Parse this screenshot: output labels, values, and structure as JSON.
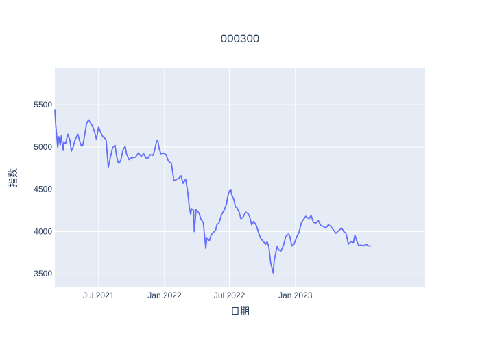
{
  "chart_data": {
    "type": "line",
    "title": "000300",
    "xlabel": "日期",
    "ylabel": "指数",
    "x_range": [
      "2021-03-01",
      "2023-12-29"
    ],
    "ylim": [
      3340,
      5930
    ],
    "grid": true,
    "legend": "none",
    "colors": {
      "line": "#636efa",
      "plot_bg": "#e5ecf6",
      "grid": "#ffffff",
      "text": "#2a3f5f"
    },
    "x_ticks": [
      {
        "label": "Jul 2021",
        "date": "2021-07-01"
      },
      {
        "label": "Jan 2022",
        "date": "2022-01-01"
      },
      {
        "label": "Jul 2022",
        "date": "2022-07-01"
      },
      {
        "label": "Jan 2023",
        "date": "2023-01-01"
      }
    ],
    "y_ticks": [
      3500,
      4000,
      4500,
      5000,
      5500
    ],
    "series": [
      {
        "points": [
          [
            "2021-03-01",
            5440
          ],
          [
            "2021-03-03",
            5290
          ],
          [
            "2021-03-09",
            4990
          ],
          [
            "2021-03-12",
            5120
          ],
          [
            "2021-03-16",
            5020
          ],
          [
            "2021-03-19",
            5130
          ],
          [
            "2021-03-24",
            4960
          ],
          [
            "2021-03-26",
            5060
          ],
          [
            "2021-03-31",
            5040
          ],
          [
            "2021-04-06",
            5150
          ],
          [
            "2021-04-12",
            5080
          ],
          [
            "2021-04-16",
            4950
          ],
          [
            "2021-04-21",
            5000
          ],
          [
            "2021-04-26",
            5080
          ],
          [
            "2021-05-04",
            5150
          ],
          [
            "2021-05-10",
            5060
          ],
          [
            "2021-05-14",
            5010
          ],
          [
            "2021-05-18",
            5020
          ],
          [
            "2021-05-24",
            5160
          ],
          [
            "2021-05-28",
            5270
          ],
          [
            "2021-06-03",
            5320
          ],
          [
            "2021-06-09",
            5280
          ],
          [
            "2021-06-15",
            5240
          ],
          [
            "2021-06-21",
            5160
          ],
          [
            "2021-06-25",
            5090
          ],
          [
            "2021-07-01",
            5240
          ],
          [
            "2021-07-06",
            5180
          ],
          [
            "2021-07-13",
            5120
          ],
          [
            "2021-07-19",
            5100
          ],
          [
            "2021-07-22",
            5080
          ],
          [
            "2021-07-28",
            4760
          ],
          [
            "2021-08-03",
            4880
          ],
          [
            "2021-08-09",
            4990
          ],
          [
            "2021-08-16",
            5020
          ],
          [
            "2021-08-20",
            4900
          ],
          [
            "2021-08-25",
            4810
          ],
          [
            "2021-08-31",
            4830
          ],
          [
            "2021-09-07",
            4960
          ],
          [
            "2021-09-13",
            5010
          ],
          [
            "2021-09-17",
            4920
          ],
          [
            "2021-09-24",
            4850
          ],
          [
            "2021-09-30",
            4870
          ],
          [
            "2021-10-12",
            4880
          ],
          [
            "2021-10-20",
            4930
          ],
          [
            "2021-10-28",
            4890
          ],
          [
            "2021-11-04",
            4920
          ],
          [
            "2021-11-10",
            4870
          ],
          [
            "2021-11-16",
            4870
          ],
          [
            "2021-11-22",
            4910
          ],
          [
            "2021-11-29",
            4900
          ],
          [
            "2021-12-03",
            4940
          ],
          [
            "2021-12-10",
            5070
          ],
          [
            "2021-12-13",
            5080
          ],
          [
            "2021-12-17",
            4980
          ],
          [
            "2021-12-22",
            4920
          ],
          [
            "2021-12-28",
            4930
          ],
          [
            "2022-01-05",
            4910
          ],
          [
            "2022-01-10",
            4850
          ],
          [
            "2022-01-14",
            4820
          ],
          [
            "2022-01-20",
            4810
          ],
          [
            "2022-01-27",
            4600
          ],
          [
            "2022-02-10",
            4630
          ],
          [
            "2022-02-16",
            4660
          ],
          [
            "2022-02-22",
            4570
          ],
          [
            "2022-03-01",
            4620
          ],
          [
            "2022-03-07",
            4460
          ],
          [
            "2022-03-11",
            4290
          ],
          [
            "2022-03-15",
            4200
          ],
          [
            "2022-03-17",
            4270
          ],
          [
            "2022-03-23",
            4250
          ],
          [
            "2022-03-25",
            4000
          ],
          [
            "2022-03-30",
            4260
          ],
          [
            "2022-04-07",
            4220
          ],
          [
            "2022-04-13",
            4140
          ],
          [
            "2022-04-19",
            4110
          ],
          [
            "2022-04-26",
            3800
          ],
          [
            "2022-04-29",
            3920
          ],
          [
            "2022-05-06",
            3890
          ],
          [
            "2022-05-11",
            3960
          ],
          [
            "2022-05-17",
            3990
          ],
          [
            "2022-05-23",
            4010
          ],
          [
            "2022-05-27",
            4080
          ],
          [
            "2022-06-02",
            4100
          ],
          [
            "2022-06-08",
            4190
          ],
          [
            "2022-06-13",
            4230
          ],
          [
            "2022-06-17",
            4260
          ],
          [
            "2022-06-23",
            4330
          ],
          [
            "2022-06-27",
            4430
          ],
          [
            "2022-07-01",
            4480
          ],
          [
            "2022-07-05",
            4490
          ],
          [
            "2022-07-08",
            4430
          ],
          [
            "2022-07-13",
            4380
          ],
          [
            "2022-07-18",
            4290
          ],
          [
            "2022-07-22",
            4280
          ],
          [
            "2022-07-28",
            4230
          ],
          [
            "2022-08-02",
            4150
          ],
          [
            "2022-08-08",
            4170
          ],
          [
            "2022-08-15",
            4230
          ],
          [
            "2022-08-22",
            4210
          ],
          [
            "2022-08-26",
            4180
          ],
          [
            "2022-09-01",
            4080
          ],
          [
            "2022-09-07",
            4120
          ],
          [
            "2022-09-14",
            4070
          ],
          [
            "2022-09-20",
            3990
          ],
          [
            "2022-09-26",
            3920
          ],
          [
            "2022-10-10",
            3850
          ],
          [
            "2022-10-14",
            3880
          ],
          [
            "2022-10-19",
            3820
          ],
          [
            "2022-10-24",
            3630
          ],
          [
            "2022-10-31",
            3510
          ],
          [
            "2022-11-03",
            3660
          ],
          [
            "2022-11-08",
            3760
          ],
          [
            "2022-11-11",
            3820
          ],
          [
            "2022-11-16",
            3780
          ],
          [
            "2022-11-22",
            3770
          ],
          [
            "2022-11-29",
            3840
          ],
          [
            "2022-12-05",
            3940
          ],
          [
            "2022-12-12",
            3970
          ],
          [
            "2022-12-16",
            3950
          ],
          [
            "2022-12-22",
            3830
          ],
          [
            "2022-12-28",
            3850
          ],
          [
            "2023-01-05",
            3940
          ],
          [
            "2023-01-11",
            3990
          ],
          [
            "2023-01-18",
            4110
          ],
          [
            "2023-01-30",
            4180
          ],
          [
            "2023-02-08",
            4150
          ],
          [
            "2023-02-14",
            4190
          ],
          [
            "2023-02-20",
            4110
          ],
          [
            "2023-02-27",
            4100
          ],
          [
            "2023-03-06",
            4130
          ],
          [
            "2023-03-13",
            4070
          ],
          [
            "2023-03-20",
            4060
          ],
          [
            "2023-03-27",
            4040
          ],
          [
            "2023-04-03",
            4080
          ],
          [
            "2023-04-10",
            4060
          ],
          [
            "2023-04-17",
            4020
          ],
          [
            "2023-04-24",
            3980
          ],
          [
            "2023-05-04",
            4020
          ],
          [
            "2023-05-10",
            4040
          ],
          [
            "2023-05-16",
            4000
          ],
          [
            "2023-05-22",
            3980
          ],
          [
            "2023-05-29",
            3850
          ],
          [
            "2023-06-05",
            3880
          ],
          [
            "2023-06-12",
            3870
          ],
          [
            "2023-06-16",
            3960
          ],
          [
            "2023-06-21",
            3890
          ],
          [
            "2023-06-27",
            3830
          ],
          [
            "2023-07-03",
            3840
          ],
          [
            "2023-07-10",
            3830
          ],
          [
            "2023-07-17",
            3850
          ],
          [
            "2023-07-24",
            3830
          ],
          [
            "2023-07-31",
            3830
          ]
        ]
      }
    ]
  }
}
